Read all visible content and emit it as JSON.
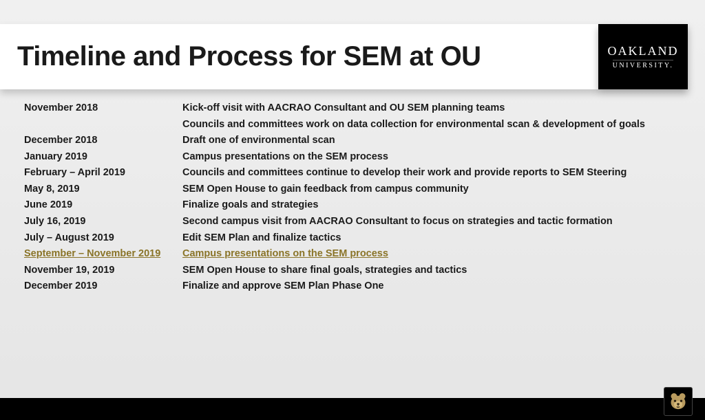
{
  "title": "Timeline and Process for SEM at OU",
  "logo": {
    "main": "OAKLAND",
    "sub": "UNIVERSITY."
  },
  "highlight_color": "#8a7428",
  "rows": [
    {
      "date": "November 2018",
      "desc": "Kick-off visit with AACRAO Consultant and OU SEM planning teams",
      "highlight": false
    },
    {
      "date": "",
      "desc": "Councils and committees work on data collection for environmental scan & development of goals",
      "highlight": false
    },
    {
      "date": "December 2018",
      "desc": "Draft one of environmental scan",
      "highlight": false
    },
    {
      "date": "January 2019",
      "desc": "Campus presentations on the SEM process",
      "highlight": false
    },
    {
      "date": "February – April 2019",
      "desc": "Councils and committees continue to develop their work and provide reports to SEM Steering",
      "highlight": false
    },
    {
      "date": "May 8, 2019",
      "desc": "SEM Open House to gain feedback from campus community",
      "highlight": false
    },
    {
      "date": "June 2019",
      "desc": "Finalize goals and strategies",
      "highlight": false
    },
    {
      "date": "July 16, 2019",
      "desc": "Second campus visit from AACRAO Consultant to focus on strategies and tactic formation",
      "highlight": false
    },
    {
      "date": "July – August 2019",
      "desc": "Edit SEM Plan and finalize tactics",
      "highlight": false
    },
    {
      "date": "September – November 2019",
      "desc": "Campus presentations on the SEM process",
      "highlight": true
    },
    {
      "date": "November 19, 2019",
      "desc": "SEM Open House to share final goals, strategies and tactics",
      "highlight": false
    },
    {
      "date": "December 2019",
      "desc": "Finalize and approve SEM Plan Phase One",
      "highlight": false
    }
  ]
}
